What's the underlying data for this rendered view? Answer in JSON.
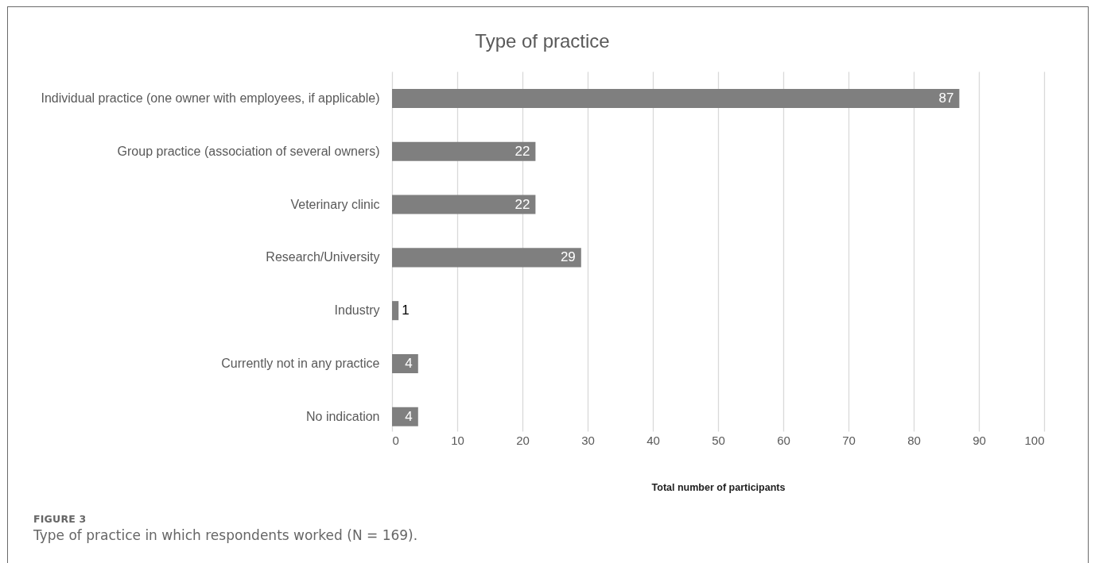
{
  "chart_data": {
    "type": "bar",
    "orientation": "horizontal",
    "title": "Type of practice",
    "categories": [
      "Individual practice (one owner with employees, if applicable)",
      "Group practice (association of several owners)",
      "Veterinary clinic",
      "Research/University",
      "Industry",
      "Currently not in any practice",
      "No indication"
    ],
    "values": [
      87,
      22,
      22,
      29,
      1,
      4,
      4
    ],
    "color": "#7f7f7f",
    "data_labels": true,
    "xlim": [
      0,
      100
    ],
    "xticks": [
      0,
      10,
      20,
      30,
      40,
      50,
      60,
      70,
      80,
      90,
      100
    ],
    "xlabel": "Total number of participants",
    "grid": "x",
    "annotations": [
      "FIGURE 3",
      "Type of practice in which respondents worked (N = 169)."
    ]
  }
}
